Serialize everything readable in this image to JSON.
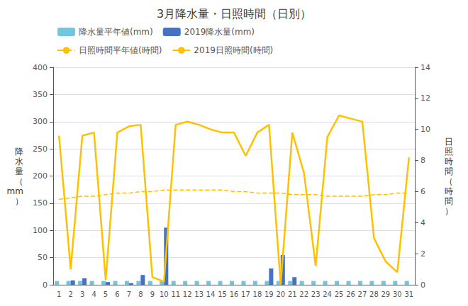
{
  "chart_data": {
    "type": "bar",
    "title": "3月降水量・日照時間（日別）",
    "categories": [
      1,
      2,
      3,
      4,
      5,
      6,
      7,
      8,
      9,
      10,
      11,
      12,
      13,
      14,
      15,
      16,
      17,
      18,
      19,
      20,
      21,
      22,
      23,
      24,
      25,
      26,
      27,
      28,
      29,
      30,
      31
    ],
    "series": [
      {
        "name": "降水量平年値(mm)",
        "type": "bar",
        "color": "#70C8E0",
        "values": [
          7,
          7,
          7,
          7,
          7,
          7,
          7,
          7,
          7,
          7,
          7,
          7,
          7,
          7,
          7,
          7,
          7,
          7,
          7,
          7,
          7,
          7,
          7,
          7,
          7,
          7,
          7,
          7,
          7,
          7,
          7
        ]
      },
      {
        "name": "2019降水量(mm)",
        "type": "bar",
        "color": "#4472C4",
        "values": [
          0,
          8,
          12,
          0,
          5,
          0,
          3,
          18,
          0,
          105,
          0,
          0,
          0,
          0,
          0,
          0,
          0,
          0,
          30,
          55,
          14,
          0,
          0,
          0,
          0,
          0,
          0,
          0,
          0,
          0,
          0
        ]
      },
      {
        "name": "日照時間平年値(時間)",
        "type": "line",
        "axis": "y2",
        "color": "#FFC000",
        "line_style": "dashed",
        "values": [
          5.5,
          5.6,
          5.7,
          5.7,
          5.8,
          5.9,
          5.9,
          6.0,
          6.0,
          6.1,
          6.1,
          6.1,
          6.1,
          6.1,
          6.1,
          6.0,
          6.0,
          5.9,
          5.9,
          5.9,
          5.8,
          5.8,
          5.8,
          5.7,
          5.7,
          5.7,
          5.7,
          5.8,
          5.8,
          5.9,
          5.9
        ]
      },
      {
        "name": "2019日照時間(時間)",
        "type": "line",
        "axis": "y2",
        "color": "#FFC000",
        "line_style": "solid",
        "values": [
          9.6,
          1.0,
          9.6,
          9.8,
          0.3,
          9.8,
          10.2,
          10.3,
          0.5,
          0.2,
          10.3,
          10.5,
          10.3,
          10.0,
          9.8,
          9.8,
          8.3,
          9.8,
          10.3,
          0.0,
          9.8,
          7.2,
          1.2,
          9.5,
          10.9,
          10.7,
          10.5,
          3.0,
          1.5,
          0.8,
          8.2
        ]
      }
    ],
    "ylabel": "降\n水\n量\n（\nmm\n）",
    "y2label": "日\n照\n時\n間\n（\n時\n間\n）",
    "ylim": [
      0,
      400
    ],
    "yticks": [
      0,
      50,
      100,
      150,
      200,
      250,
      300,
      350,
      400
    ],
    "y2lim": [
      0,
      14
    ],
    "y2ticks": [
      0,
      2,
      4,
      6,
      8,
      10,
      12,
      14
    ],
    "grid": true,
    "legend": "upper left"
  }
}
